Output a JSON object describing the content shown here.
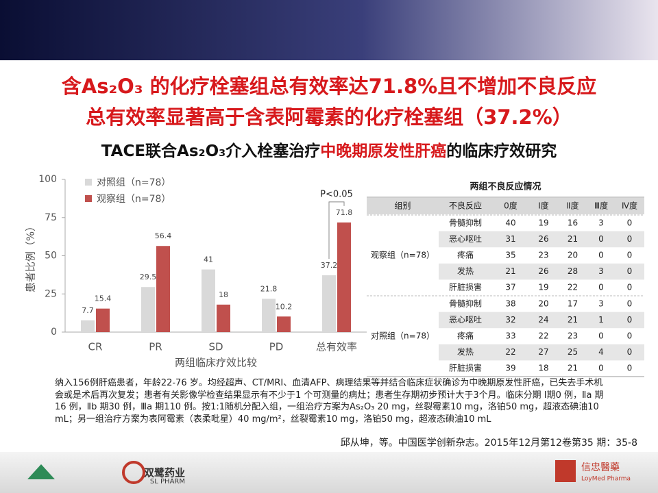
{
  "header": {
    "title_line1": "含As₂O₃ 的化疗栓塞组总有效率达71.8%且不增加不良反应",
    "title_line2": "总有效率显著高于含表阿霉素的化疗栓塞组（37.2%）",
    "subtitle_parts": [
      "TACE联合As₂O₃介入栓塞治疗",
      "中晚期原发性肝癌",
      "的临床疗效研究"
    ]
  },
  "chart_data": {
    "type": "bar",
    "x_label": "两组临床疗效比较",
    "y_label": "患者比例（%）",
    "categories": [
      "CR",
      "PR",
      "SD",
      "PD",
      "总有效率"
    ],
    "series": [
      {
        "name": "对照组（n=78）",
        "color": "#d9d9d9",
        "values": [
          7.7,
          29.5,
          41,
          21.8,
          37.2
        ]
      },
      {
        "name": "观察组（n=78）",
        "color": "#c0504d",
        "values": [
          15.4,
          56.4,
          18,
          10.2,
          71.8
        ]
      }
    ],
    "ylim": [
      0,
      100
    ],
    "yticks": [
      0,
      25,
      50,
      75,
      100
    ],
    "annotation": "P<0.05",
    "legend": "upper-left"
  },
  "table": {
    "title": "两组不良反应情况",
    "header": [
      "组别",
      "不良反应",
      "0度",
      "Ⅰ度",
      "Ⅱ度",
      "Ⅲ度",
      "Ⅳ度"
    ],
    "groups": [
      {
        "label": "观察组（n=78）",
        "rows": [
          [
            "骨髓抑制",
            40,
            19,
            16,
            3,
            0
          ],
          [
            "恶心呕吐",
            31,
            26,
            21,
            0,
            0
          ],
          [
            "疼痛",
            35,
            23,
            20,
            0,
            0
          ],
          [
            "发热",
            21,
            26,
            28,
            3,
            0
          ],
          [
            "肝脏损害",
            37,
            19,
            22,
            0,
            0
          ]
        ]
      },
      {
        "label": "对照组（n=78）",
        "rows": [
          [
            "骨髓抑制",
            38,
            20,
            17,
            3,
            0
          ],
          [
            "恶心呕吐",
            32,
            24,
            21,
            1,
            0
          ],
          [
            "疼痛",
            33,
            22,
            23,
            0,
            0
          ],
          [
            "发热",
            22,
            27,
            25,
            4,
            0
          ],
          [
            "肝脏损害",
            39,
            18,
            21,
            0,
            0
          ]
        ]
      }
    ]
  },
  "note": "纳入156例肝癌患者，年龄22-76 岁。均经超声、CT/MRI、血清AFP、病理结果等并结合临床症状确诊为中晚期原发性肝癌，已失去手术机会或是术后再次复发；患者有关影像学检查结果显示有不少于1 个可测量的病灶；患者生存期初步预计大于3个月。临床分期 Ⅰ期0 例，Ⅱa 期16 例，Ⅱb 期30 例，Ⅲa 期110 例。按1:1随机分配入组，一组治疗方案为As₂O₃ 20 mg，丝裂霉素10 mg，洛铂50 mg，超液态碘油10 mL；另一组治疗方案为表阿霉素（表柔吡星）40 mg/m²，丝裂霉素10 mg，洛铂50 mg，超液态碘油10 mL",
  "citation": "邱从坤，等。中国医学创新杂志。2015年12月第12卷第35 期：35-8",
  "footer": {
    "logo2_cn": "双鹭药业",
    "logo2_en": "SL PHARM",
    "logo3_cn": "信忠醫藥",
    "logo3_en": "LoyMed Pharma"
  }
}
